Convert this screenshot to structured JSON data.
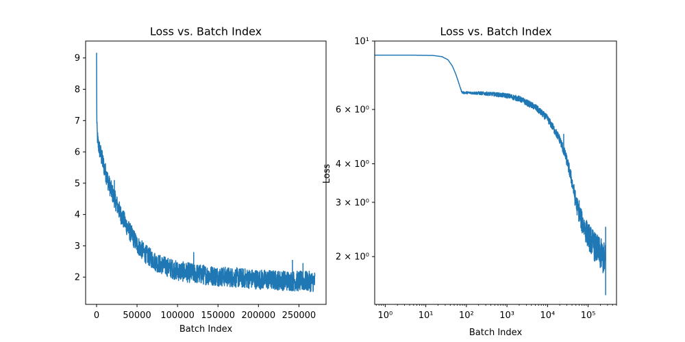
{
  "chart_data": [
    {
      "type": "line",
      "title": "Loss vs. Batch Index",
      "xlabel": "Batch Index",
      "ylabel": "",
      "xscale": "linear",
      "yscale": "linear",
      "xlim": [
        -13500,
        283500
      ],
      "ylim": [
        1.13,
        9.54
      ],
      "xticks": [
        0,
        50000,
        100000,
        150000,
        200000,
        250000
      ],
      "xtick_labels": [
        "0",
        "50000",
        "100000",
        "150000",
        "200000",
        "250000"
      ],
      "yticks": [
        2,
        3,
        4,
        5,
        6,
        7,
        8,
        9
      ],
      "ytick_labels": [
        "2",
        "3",
        "4",
        "5",
        "6",
        "7",
        "8",
        "9"
      ],
      "grid": false,
      "color": "#1f77b4",
      "series": [
        {
          "x": [
            0,
            300,
            1000,
            2000,
            5000,
            10000,
            15000,
            20000,
            30000,
            40000,
            50000,
            60000,
            75000,
            100000,
            125000,
            150000,
            175000,
            200000,
            225000,
            250000,
            270000
          ],
          "mean": [
            9.15,
            6.9,
            6.5,
            6.25,
            5.95,
            5.45,
            5.0,
            4.65,
            4.0,
            3.5,
            3.05,
            2.75,
            2.45,
            2.2,
            2.1,
            2.03,
            1.98,
            1.93,
            1.9,
            1.87,
            1.86
          ],
          "band": [
            0.05,
            0.2,
            0.25,
            0.28,
            0.3,
            0.3,
            0.3,
            0.3,
            0.3,
            0.3,
            0.3,
            0.3,
            0.3,
            0.32,
            0.32,
            0.32,
            0.32,
            0.32,
            0.32,
            0.33,
            0.33
          ],
          "spikes": [
            [
              0,
              9.15
            ],
            [
              22000,
              5.1
            ],
            [
              120000,
              2.8
            ],
            [
              242000,
              2.55
            ],
            [
              255000,
              2.45
            ]
          ]
        }
      ]
    },
    {
      "type": "line",
      "title": "Loss vs. Batch Index",
      "xlabel": "Batch Index",
      "ylabel": "Loss",
      "xscale": "log",
      "yscale": "log",
      "xlim": [
        0.55,
        500000
      ],
      "ylim": [
        1.4,
        10
      ],
      "xticks": [
        1,
        10,
        100,
        1000,
        10000,
        100000
      ],
      "xtick_labels": [
        "10⁰",
        "10¹",
        "10²",
        "10³",
        "10⁴",
        "10⁵"
      ],
      "yticks": [
        2,
        3,
        4,
        6,
        10
      ],
      "ytick_labels": [
        "2 × 10⁰",
        "3 × 10⁰",
        "4 × 10⁰",
        "6 × 10⁰",
        "10¹"
      ],
      "grid": false,
      "color": "#1f77b4",
      "series": [
        {
          "x": [
            0.55,
            5,
            15,
            25,
            35,
            45,
            55,
            65,
            75,
            80,
            100,
            200,
            500,
            1000,
            2000,
            5000,
            10000,
            20000,
            30000,
            40000,
            50000,
            70000,
            100000,
            150000,
            200000,
            270000
          ],
          "mean": [
            9.0,
            9.0,
            8.98,
            8.9,
            8.7,
            8.3,
            7.8,
            7.3,
            6.9,
            6.8,
            6.8,
            6.78,
            6.72,
            6.65,
            6.5,
            6.1,
            5.6,
            4.8,
            4.1,
            3.5,
            3.0,
            2.6,
            2.35,
            2.15,
            2.05,
            1.95
          ],
          "band": [
            0,
            0,
            0,
            0,
            0,
            0,
            0,
            0,
            0.04,
            0.05,
            0.06,
            0.08,
            0.1,
            0.12,
            0.14,
            0.15,
            0.15,
            0.16,
            0.17,
            0.18,
            0.2,
            0.22,
            0.23,
            0.24,
            0.25,
            0.25
          ],
          "spikes": [
            [
              25000,
              5.0
            ],
            [
              60000,
              3.05
            ],
            [
              270000,
              2.5
            ],
            [
              270000,
              1.5
            ]
          ]
        }
      ]
    }
  ]
}
